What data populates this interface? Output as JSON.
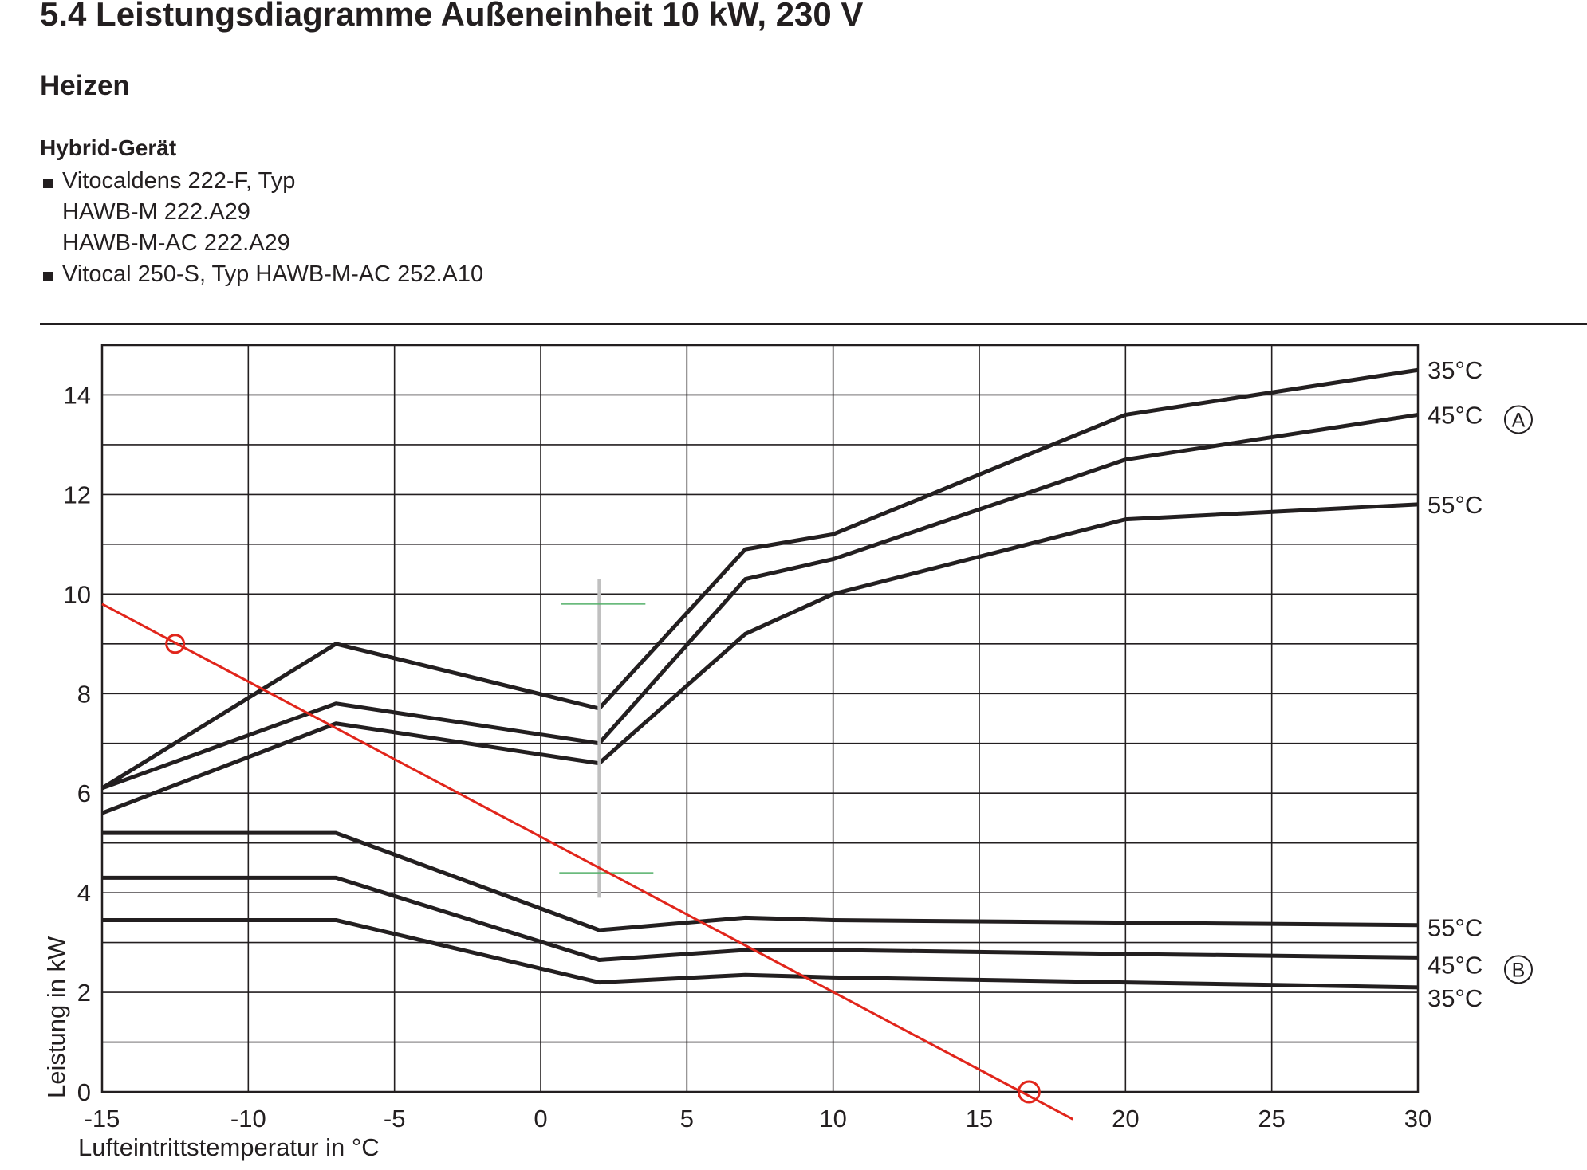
{
  "header": {
    "title": "5.4 Leistungsdiagramme Außeneinheit 10 kW, 230 V",
    "subtitle": "Heizen",
    "device_heading": "Hybrid-Gerät",
    "bullet_lines": [
      {
        "text": "Vitocaldens 222-F, Typ",
        "bullet": true
      },
      {
        "text": "HAWB-M 222.A29",
        "bullet": false
      },
      {
        "text": "HAWB-M-AC 222.A29",
        "bullet": false
      },
      {
        "text": "Vitocal 250-S, Typ HAWB-M-AC 252.A10",
        "bullet": true
      }
    ]
  },
  "chart_data": {
    "type": "line",
    "xlabel": "Lufteintrittstemperatur in °C",
    "ylabel": "Leistung in kW",
    "xlim": [
      -15,
      30
    ],
    "ylim": [
      0,
      15
    ],
    "xticks": [
      -15,
      -10,
      -5,
      0,
      5,
      10,
      15,
      20,
      25,
      30
    ],
    "yticks": [
      0,
      2,
      4,
      6,
      8,
      10,
      12,
      14
    ],
    "xtick_labels": [
      "-15",
      "-10",
      "-5",
      "0",
      "5",
      "10",
      "15",
      "20",
      "25",
      "30"
    ],
    "ytick_labels": [
      "0",
      "2",
      "4",
      "6",
      "8",
      "10",
      "12",
      "14"
    ],
    "grid": true,
    "groups": [
      {
        "label": "A",
        "series": [
          {
            "name": "35°C",
            "x": [
              -15,
              -7,
              2,
              7,
              10,
              20,
              30
            ],
            "y": [
              6.1,
              9.0,
              7.7,
              10.9,
              11.2,
              13.6,
              14.5
            ]
          },
          {
            "name": "45°C",
            "x": [
              -15,
              -7,
              2,
              7,
              10,
              20,
              30
            ],
            "y": [
              6.1,
              7.8,
              7.0,
              10.3,
              10.7,
              12.7,
              13.6
            ]
          },
          {
            "name": "55°C",
            "x": [
              -15,
              -7,
              2,
              7,
              10,
              20,
              30
            ],
            "y": [
              5.6,
              7.4,
              6.6,
              9.2,
              10.0,
              11.5,
              11.8
            ]
          }
        ]
      },
      {
        "label": "B",
        "series": [
          {
            "name": "55°C",
            "x": [
              -15,
              -7,
              2,
              7,
              10,
              20,
              30
            ],
            "y": [
              5.2,
              5.2,
              3.25,
              3.5,
              3.45,
              3.4,
              3.35
            ]
          },
          {
            "name": "45°C",
            "x": [
              -15,
              -7,
              2,
              7,
              10,
              20,
              30
            ],
            "y": [
              4.3,
              4.3,
              2.65,
              2.85,
              2.85,
              2.77,
              2.7
            ]
          },
          {
            "name": "35°C",
            "x": [
              -15,
              -7,
              2,
              7,
              10,
              20,
              30
            ],
            "y": [
              3.45,
              3.45,
              2.2,
              2.35,
              2.3,
              2.2,
              2.1
            ]
          }
        ]
      }
    ],
    "overlay_line": {
      "color": "#e1251b",
      "x": [
        -15,
        18.2
      ],
      "y": [
        9.8,
        -0.55
      ],
      "markers": [
        {
          "x": -12.5,
          "y": 9.0
        },
        {
          "x": 16.7,
          "y": 0.0
        }
      ]
    },
    "overlay_error_bar": {
      "color": "#c0c0c0",
      "tick_color": "#55b06a",
      "x": 2.0,
      "y_low": 3.9,
      "y_high": 10.3,
      "tick_upper": 9.8,
      "tick_lower": 4.4
    }
  }
}
